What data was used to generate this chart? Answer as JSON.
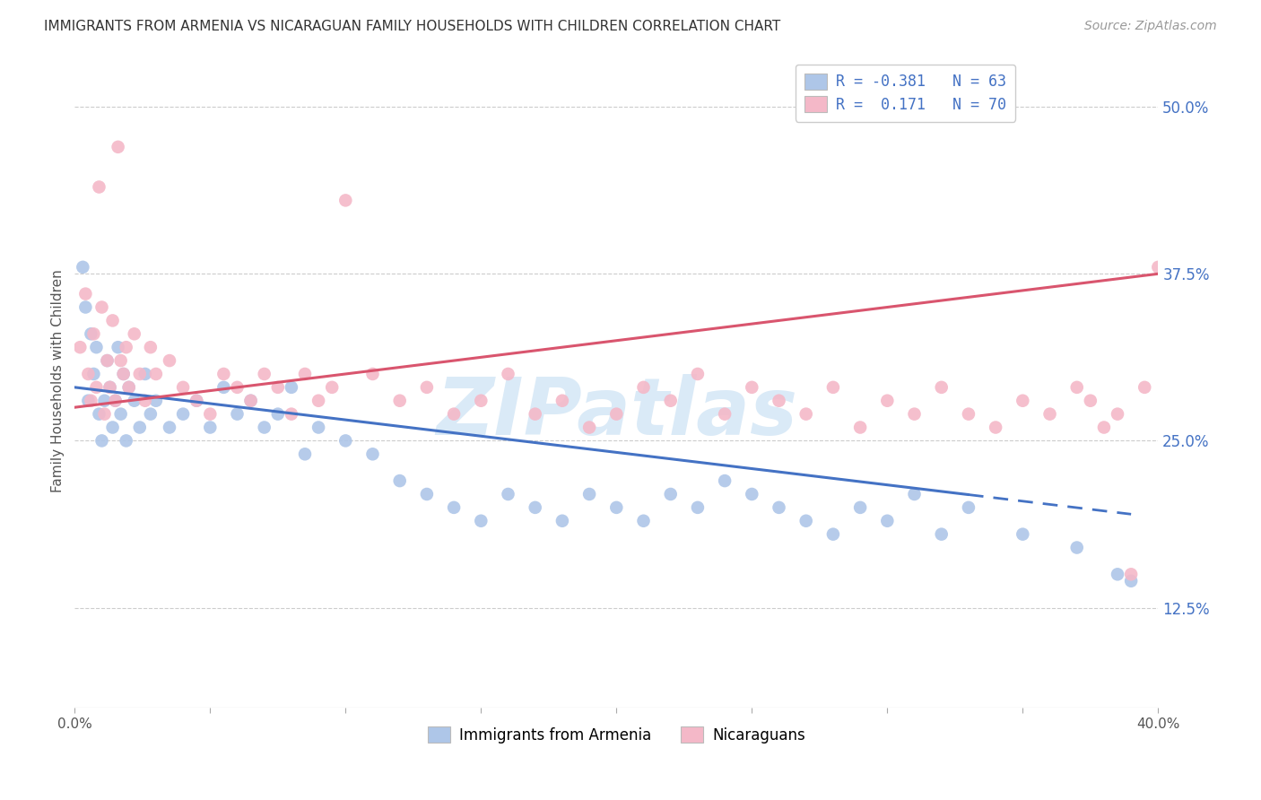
{
  "title": "IMMIGRANTS FROM ARMENIA VS NICARAGUAN FAMILY HOUSEHOLDS WITH CHILDREN CORRELATION CHART",
  "source": "Source: ZipAtlas.com",
  "ylabel": "Family Households with Children",
  "ytick_values": [
    12.5,
    25.0,
    37.5,
    50.0
  ],
  "xmin": 0.0,
  "xmax": 40.0,
  "ymin": 5.0,
  "ymax": 54.0,
  "legend_label1": "Immigrants from Armenia",
  "legend_label2": "Nicaraguans",
  "scatter_color_blue": "#aec6e8",
  "scatter_color_pink": "#f4b8c8",
  "line_color_blue": "#4472c4",
  "line_color_pink": "#d9556e",
  "watermark": "ZIPatlas",
  "watermark_color": "#daeaf7",
  "R_blue": -0.381,
  "N_blue": 63,
  "R_pink": 0.171,
  "N_pink": 70,
  "blue_line_x0": 0.0,
  "blue_line_y0": 29.0,
  "blue_line_x1": 39.0,
  "blue_line_y1": 19.5,
  "blue_line_solid_end": 33.0,
  "pink_line_x0": 0.0,
  "pink_line_y0": 27.5,
  "pink_line_x1": 40.0,
  "pink_line_y1": 37.5,
  "blue_x": [
    0.3,
    0.4,
    0.5,
    0.6,
    0.7,
    0.8,
    0.9,
    1.0,
    1.1,
    1.2,
    1.3,
    1.4,
    1.5,
    1.6,
    1.7,
    1.8,
    1.9,
    2.0,
    2.2,
    2.4,
    2.6,
    2.8,
    3.0,
    3.5,
    4.0,
    4.5,
    5.0,
    5.5,
    6.0,
    6.5,
    7.0,
    7.5,
    8.0,
    8.5,
    9.0,
    10.0,
    11.0,
    12.0,
    13.0,
    14.0,
    15.0,
    16.0,
    17.0,
    18.0,
    19.0,
    20.0,
    21.0,
    22.0,
    23.0,
    24.0,
    25.0,
    26.0,
    27.0,
    28.0,
    29.0,
    30.0,
    31.0,
    32.0,
    33.0,
    35.0,
    37.0,
    38.5,
    39.0
  ],
  "blue_y": [
    38.0,
    35.0,
    28.0,
    33.0,
    30.0,
    32.0,
    27.0,
    25.0,
    28.0,
    31.0,
    29.0,
    26.0,
    28.0,
    32.0,
    27.0,
    30.0,
    25.0,
    29.0,
    28.0,
    26.0,
    30.0,
    27.0,
    28.0,
    26.0,
    27.0,
    28.0,
    26.0,
    29.0,
    27.0,
    28.0,
    26.0,
    27.0,
    29.0,
    24.0,
    26.0,
    25.0,
    24.0,
    22.0,
    21.0,
    20.0,
    19.0,
    21.0,
    20.0,
    19.0,
    21.0,
    20.0,
    19.0,
    21.0,
    20.0,
    22.0,
    21.0,
    20.0,
    19.0,
    18.0,
    20.0,
    19.0,
    21.0,
    18.0,
    20.0,
    18.0,
    17.0,
    15.0,
    14.5
  ],
  "pink_x": [
    0.2,
    0.4,
    0.5,
    0.6,
    0.7,
    0.8,
    0.9,
    1.0,
    1.1,
    1.2,
    1.3,
    1.4,
    1.5,
    1.6,
    1.7,
    1.8,
    1.9,
    2.0,
    2.2,
    2.4,
    2.6,
    2.8,
    3.0,
    3.5,
    4.0,
    4.5,
    5.0,
    5.5,
    6.0,
    6.5,
    7.0,
    7.5,
    8.0,
    8.5,
    9.0,
    9.5,
    10.0,
    11.0,
    12.0,
    13.0,
    14.0,
    15.0,
    16.0,
    17.0,
    18.0,
    19.0,
    20.0,
    21.0,
    22.0,
    23.0,
    24.0,
    25.0,
    26.0,
    27.0,
    28.0,
    29.0,
    30.0,
    31.0,
    32.0,
    33.0,
    34.0,
    35.0,
    36.0,
    37.0,
    37.5,
    38.0,
    38.5,
    39.0,
    39.5,
    40.0
  ],
  "pink_y": [
    32.0,
    36.0,
    30.0,
    28.0,
    33.0,
    29.0,
    44.0,
    35.0,
    27.0,
    31.0,
    29.0,
    34.0,
    28.0,
    47.0,
    31.0,
    30.0,
    32.0,
    29.0,
    33.0,
    30.0,
    28.0,
    32.0,
    30.0,
    31.0,
    29.0,
    28.0,
    27.0,
    30.0,
    29.0,
    28.0,
    30.0,
    29.0,
    27.0,
    30.0,
    28.0,
    29.0,
    43.0,
    30.0,
    28.0,
    29.0,
    27.0,
    28.0,
    30.0,
    27.0,
    28.0,
    26.0,
    27.0,
    29.0,
    28.0,
    30.0,
    27.0,
    29.0,
    28.0,
    27.0,
    29.0,
    26.0,
    28.0,
    27.0,
    29.0,
    27.0,
    26.0,
    28.0,
    27.0,
    29.0,
    28.0,
    26.0,
    27.0,
    15.0,
    29.0,
    38.0
  ]
}
